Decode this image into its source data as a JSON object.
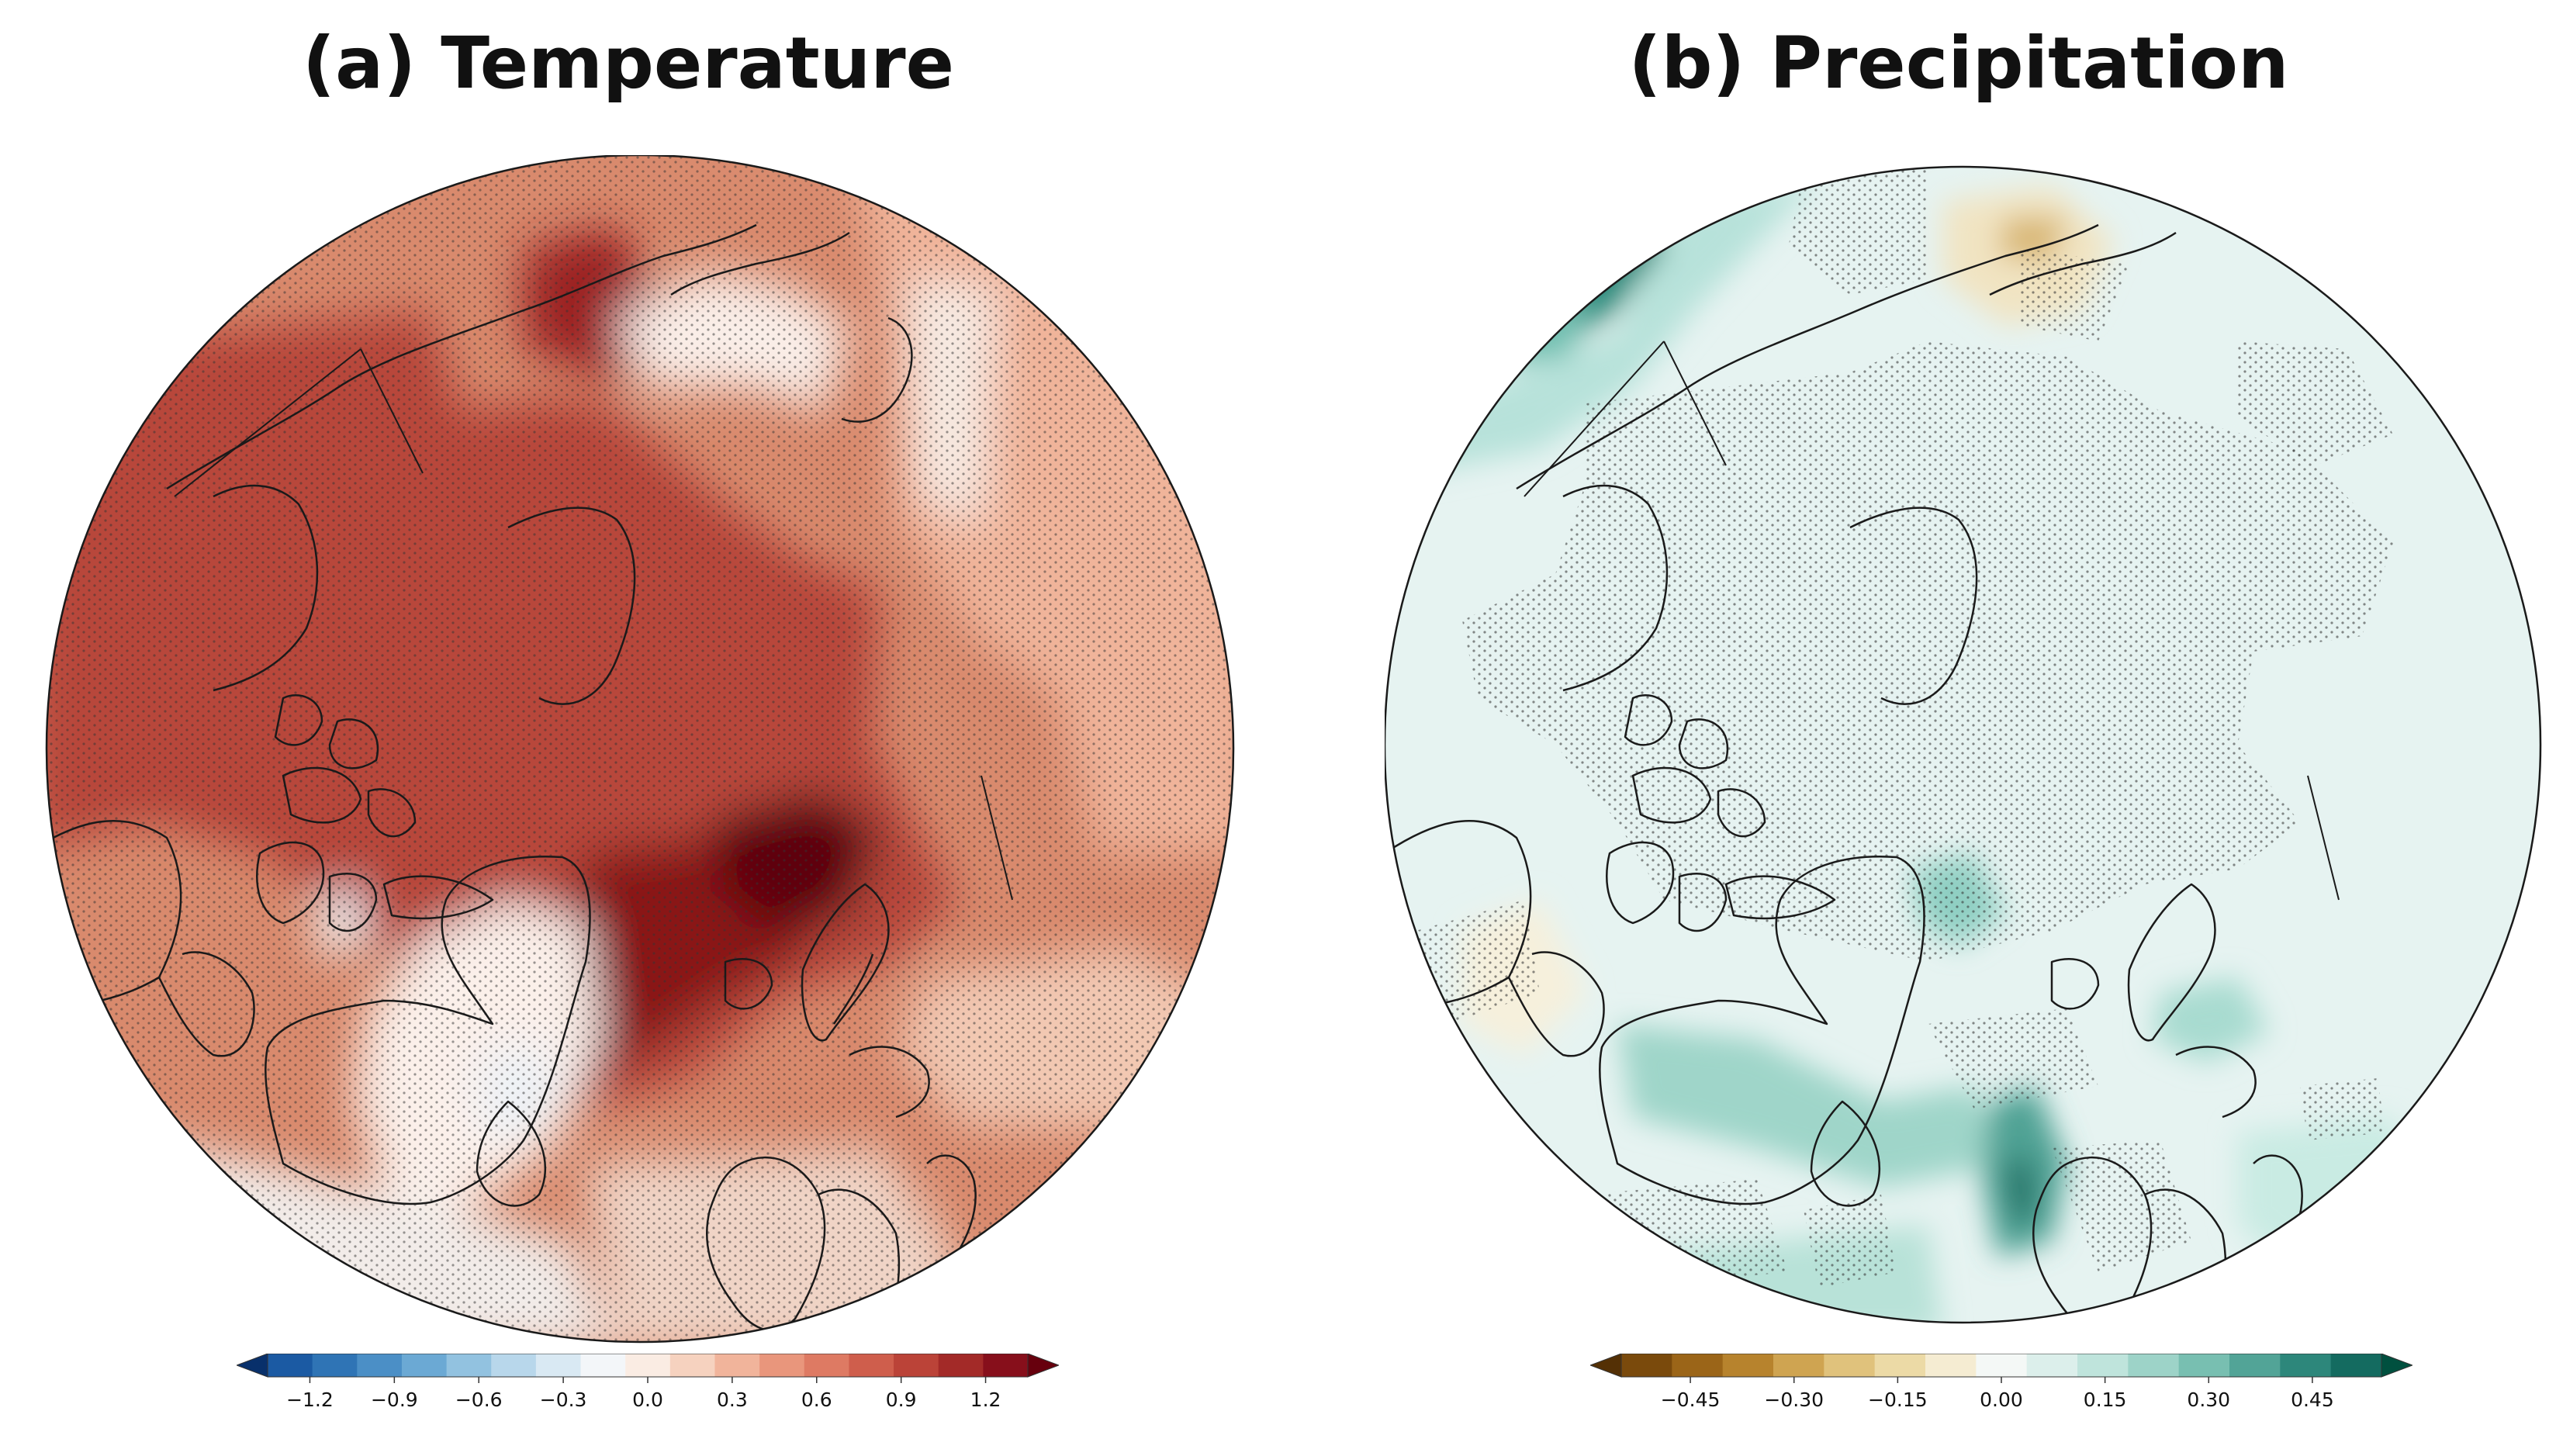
{
  "panels": [
    {
      "id": "a",
      "title": "(a) Temperature",
      "variable": "temperature",
      "colorbar": {
        "ticks": [
          "−1.2",
          "−0.9",
          "−0.6",
          "−0.3",
          "0.0",
          "0.3",
          "0.6",
          "0.9",
          "1.2"
        ],
        "colors": [
          "#08306b",
          "#1b5aa3",
          "#2f74b5",
          "#4b8fc6",
          "#6ba9d4",
          "#92c2e0",
          "#b8d7eb",
          "#d9e9f3",
          "#f3f6f9",
          "#faece3",
          "#f6d2bf",
          "#f1b49b",
          "#e9967c",
          "#de7a63",
          "#cf5e4c",
          "#bb4338",
          "#a32a28",
          "#870f1b",
          "#67000d"
        ],
        "extend": "both",
        "range": [
          -1.35,
          1.35
        ]
      }
    },
    {
      "id": "b",
      "title": "(b) Precipitation",
      "variable": "precipitation",
      "colorbar": {
        "ticks": [
          "−0.45",
          "−0.30",
          "−0.15",
          "0.00",
          "0.15",
          "0.30",
          "0.45"
        ],
        "colors": [
          "#543005",
          "#7a4a0c",
          "#9b6518",
          "#b7832d",
          "#cfa451",
          "#e0c27c",
          "#ecdaa6",
          "#f5ecd2",
          "#f4f8f6",
          "#dcefeb",
          "#bfe4dc",
          "#9dd3c8",
          "#78bfb1",
          "#52a497",
          "#2d877b",
          "#146b60",
          "#00503f"
        ],
        "extend": "both",
        "range": [
          -0.55,
          0.55
        ]
      }
    }
  ],
  "colors": {
    "coastline": "#1a1a1a",
    "stipple": "#333333"
  }
}
